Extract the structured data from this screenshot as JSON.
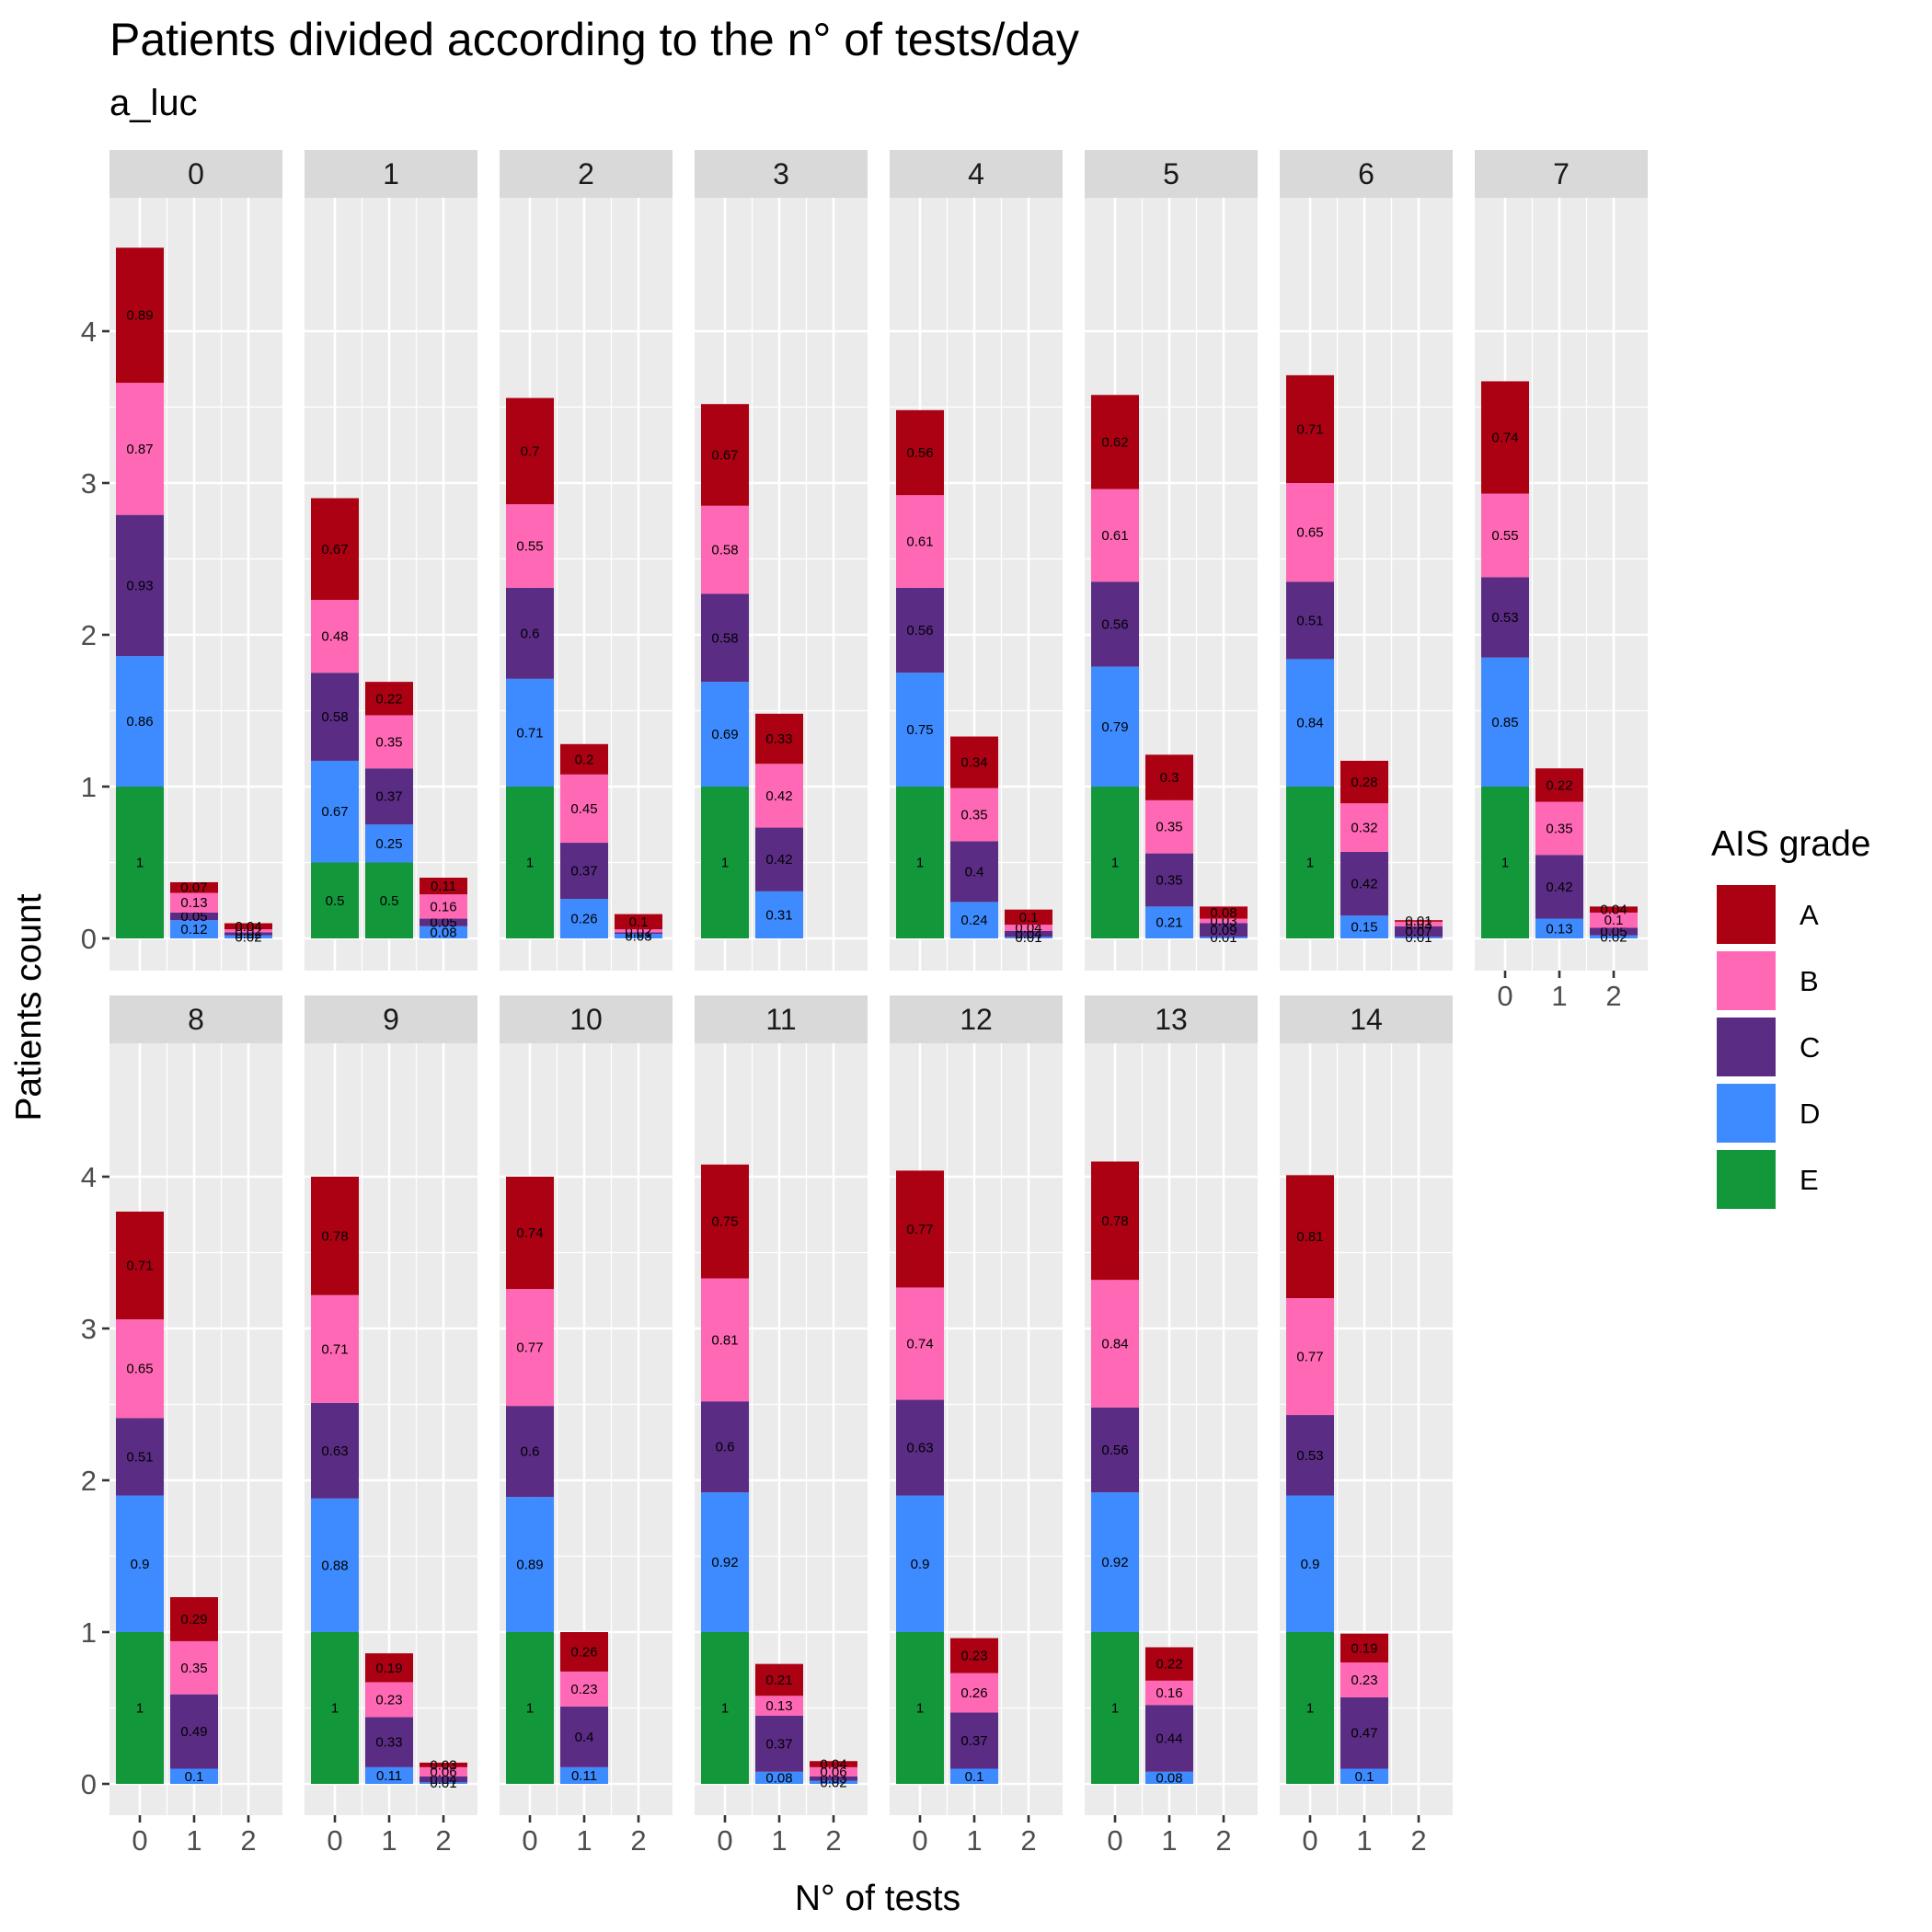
{
  "title": "Patients divided according to the n° of tests/day",
  "subtitle": "a_luc",
  "colors": {
    "A": "#AC0013",
    "B": "#FF68B4",
    "C": "#5A2C84",
    "D": "#3D8BFF",
    "E": "#13973B"
  },
  "chart_data": {
    "type": "bar",
    "stacked": true,
    "facet_label_field": "panel",
    "x_categories": [
      "0",
      "1",
      "2"
    ],
    "xlabel": "N° of tests",
    "ylabel": "Patients count",
    "ylim": [
      0,
      4.6
    ],
    "y_ticks": [
      0,
      1,
      2,
      3,
      4
    ],
    "grid": true,
    "legend": {
      "title": "AIS grade",
      "position": "right",
      "entries": [
        "A",
        "B",
        "C",
        "D",
        "E"
      ]
    },
    "stack_order_bottom_to_top": [
      "E",
      "D",
      "C",
      "B",
      "A"
    ],
    "facets": [
      {
        "panel": "0",
        "bars": [
          {
            "E": 1,
            "D": 0.86,
            "C": 0.93,
            "B": 0.87,
            "A": 0.89
          },
          {
            "D": 0.12,
            "C": 0.05,
            "B": 0.13,
            "A": 0.07
          },
          {
            "D": 0.02,
            "C": 0.02,
            "B": 0.02,
            "A": 0.04
          }
        ]
      },
      {
        "panel": "1",
        "bars": [
          {
            "E": 0.5,
            "D": 0.67,
            "C": 0.58,
            "B": 0.48,
            "A": 0.67
          },
          {
            "E": 0.5,
            "D": 0.25,
            "C": 0.37,
            "B": 0.35,
            "A": 0.22
          },
          {
            "D": 0.08,
            "C": 0.05,
            "B": 0.16,
            "A": 0.11
          }
        ]
      },
      {
        "panel": "2",
        "bars": [
          {
            "E": 1,
            "D": 0.71,
            "C": 0.6,
            "B": 0.55,
            "A": 0.7
          },
          {
            "D": 0.26,
            "C": 0.37,
            "B": 0.45,
            "A": 0.2
          },
          {
            "D": 0.03,
            "C": 0.01,
            "B": 0.02,
            "A": 0.1
          }
        ]
      },
      {
        "panel": "3",
        "bars": [
          {
            "E": 1,
            "D": 0.69,
            "C": 0.58,
            "B": 0.58,
            "A": 0.67
          },
          {
            "D": 0.31,
            "C": 0.42,
            "B": 0.42,
            "A": 0.33
          },
          {}
        ]
      },
      {
        "panel": "4",
        "bars": [
          {
            "E": 1,
            "D": 0.75,
            "C": 0.56,
            "B": 0.61,
            "A": 0.56
          },
          {
            "D": 0.24,
            "C": 0.4,
            "B": 0.35,
            "A": 0.34
          },
          {
            "D": 0.01,
            "C": 0.04,
            "B": 0.04,
            "A": 0.1
          }
        ]
      },
      {
        "panel": "5",
        "bars": [
          {
            "E": 1,
            "D": 0.79,
            "C": 0.56,
            "B": 0.61,
            "A": 0.62
          },
          {
            "D": 0.21,
            "C": 0.35,
            "B": 0.35,
            "A": 0.3
          },
          {
            "D": 0.01,
            "C": 0.09,
            "B": 0.03,
            "A": 0.08
          }
        ]
      },
      {
        "panel": "6",
        "bars": [
          {
            "E": 1,
            "D": 0.84,
            "C": 0.51,
            "B": 0.65,
            "A": 0.71
          },
          {
            "D": 0.15,
            "C": 0.42,
            "B": 0.32,
            "A": 0.28
          },
          {
            "D": 0.01,
            "C": 0.07,
            "B": 0.03,
            "A": 0.01
          }
        ]
      },
      {
        "panel": "7",
        "bars": [
          {
            "E": 1,
            "D": 0.85,
            "C": 0.53,
            "B": 0.55,
            "A": 0.74
          },
          {
            "D": 0.13,
            "C": 0.42,
            "B": 0.35,
            "A": 0.22
          },
          {
            "D": 0.02,
            "C": 0.05,
            "B": 0.1,
            "A": 0.04
          }
        ]
      },
      {
        "panel": "8",
        "bars": [
          {
            "E": 1,
            "D": 0.9,
            "C": 0.51,
            "B": 0.65,
            "A": 0.71
          },
          {
            "D": 0.1,
            "C": 0.49,
            "B": 0.35,
            "A": 0.29
          },
          {}
        ]
      },
      {
        "panel": "9",
        "bars": [
          {
            "E": 1,
            "D": 0.88,
            "C": 0.63,
            "B": 0.71,
            "A": 0.78
          },
          {
            "D": 0.11,
            "C": 0.33,
            "B": 0.23,
            "A": 0.19
          },
          {
            "D": 0.01,
            "C": 0.04,
            "B": 0.06,
            "A": 0.03
          }
        ]
      },
      {
        "panel": "10",
        "bars": [
          {
            "E": 1,
            "D": 0.89,
            "C": 0.6,
            "B": 0.77,
            "A": 0.74
          },
          {
            "D": 0.11,
            "C": 0.4,
            "B": 0.23,
            "A": 0.26
          },
          {}
        ]
      },
      {
        "panel": "11",
        "bars": [
          {
            "E": 1,
            "D": 0.92,
            "C": 0.6,
            "B": 0.81,
            "A": 0.75
          },
          {
            "D": 0.08,
            "C": 0.37,
            "B": 0.13,
            "A": 0.21
          },
          {
            "D": 0.02,
            "C": 0.03,
            "B": 0.06,
            "A": 0.04
          }
        ]
      },
      {
        "panel": "12",
        "bars": [
          {
            "E": 1,
            "D": 0.9,
            "C": 0.63,
            "B": 0.74,
            "A": 0.77
          },
          {
            "D": 0.1,
            "C": 0.37,
            "B": 0.26,
            "A": 0.23
          },
          {}
        ]
      },
      {
        "panel": "13",
        "bars": [
          {
            "E": 1,
            "D": 0.92,
            "C": 0.56,
            "B": 0.84,
            "A": 0.78
          },
          {
            "D": 0.08,
            "C": 0.44,
            "B": 0.16,
            "A": 0.22
          },
          {}
        ]
      },
      {
        "panel": "14",
        "bars": [
          {
            "E": 1,
            "D": 0.9,
            "C": 0.53,
            "B": 0.77,
            "A": 0.81
          },
          {
            "D": 0.1,
            "C": 0.47,
            "B": 0.23,
            "A": 0.19
          },
          {}
        ]
      }
    ]
  }
}
